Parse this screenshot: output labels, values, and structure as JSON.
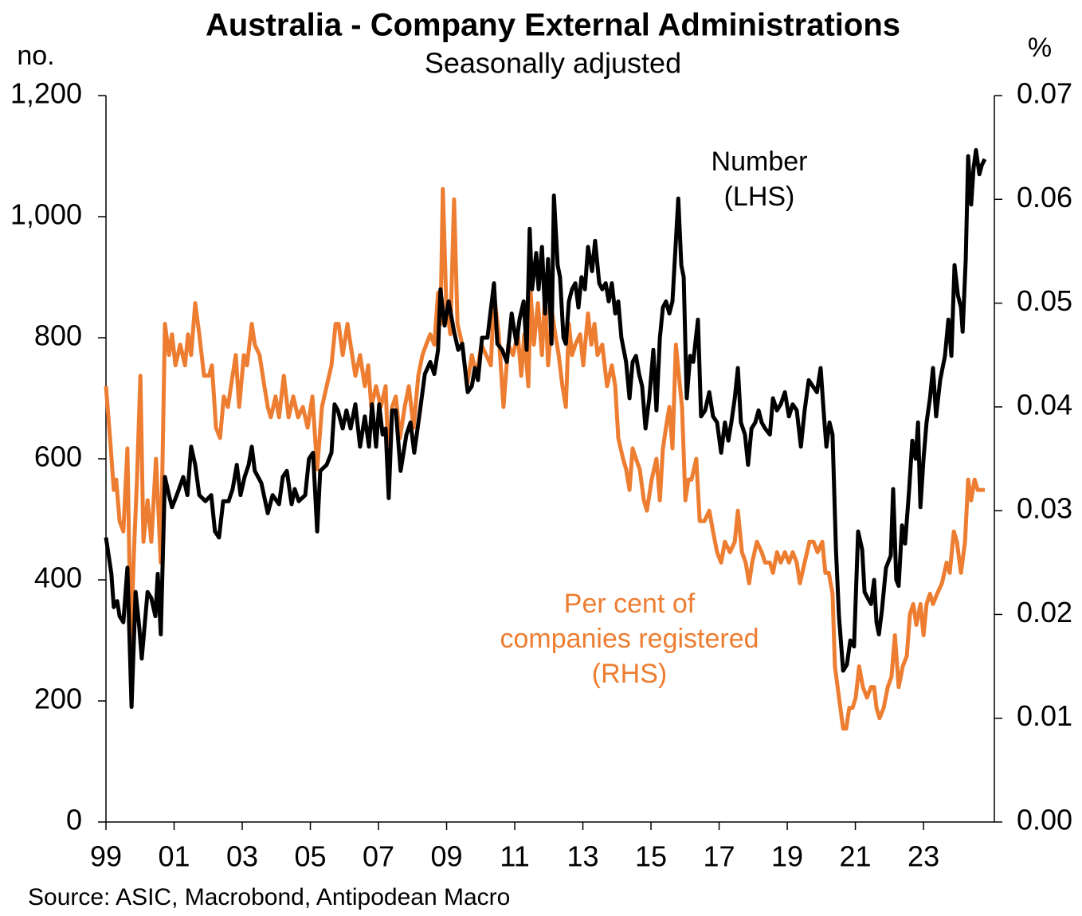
{
  "chart_data": {
    "type": "line",
    "title": "Australia - Company External Administrations",
    "subtitle": "Seasonally adjusted",
    "y_label": "no.",
    "y2_label": "%",
    "source": "Source: ASIC, Macrobond, Antipodean Macro",
    "annotations": [
      {
        "lines": [
          "Number",
          "(LHS)"
        ],
        "color": "#000000"
      },
      {
        "lines": [
          "Per cent of",
          "companies registered",
          "(RHS)"
        ],
        "color": "#ed7d31"
      }
    ],
    "xlim": [
      1999,
      2025.08
    ],
    "xticks": [
      {
        "value": 1999,
        "label": "99"
      },
      {
        "value": 2001,
        "label": "01"
      },
      {
        "value": 2003,
        "label": "03"
      },
      {
        "value": 2005,
        "label": "05"
      },
      {
        "value": 2007,
        "label": "07"
      },
      {
        "value": 2009,
        "label": "09"
      },
      {
        "value": 2011,
        "label": "11"
      },
      {
        "value": 2013,
        "label": "13"
      },
      {
        "value": 2015,
        "label": "15"
      },
      {
        "value": 2017,
        "label": "17"
      },
      {
        "value": 2019,
        "label": "19"
      },
      {
        "value": 2021,
        "label": "21"
      },
      {
        "value": 2023,
        "label": "23"
      }
    ],
    "ylim": [
      0,
      1200
    ],
    "yticks": [
      0,
      200,
      400,
      600,
      800,
      {
        "value": 1000,
        "label": "1,000"
      },
      {
        "value": 1200,
        "label": "1,200"
      }
    ],
    "y2lim": [
      0,
      0.07
    ],
    "y2ticks": [
      {
        "value": 0,
        "label": "0.00"
      },
      0.01,
      0.02,
      0.03,
      0.04,
      0.05,
      0.06,
      0.07
    ],
    "series": [
      {
        "name": "Number (LHS)",
        "color": "#000000",
        "x": [
          1999.0,
          1999.16,
          1999.23,
          1999.33,
          1999.4,
          1999.51,
          1999.63,
          1999.75,
          1999.87,
          1999.98,
          2000.05,
          2000.22,
          2000.33,
          2000.45,
          2000.52,
          2000.61,
          2000.73,
          2000.85,
          2000.94,
          2001.08,
          2001.27,
          2001.39,
          2001.5,
          2001.62,
          2001.74,
          2001.92,
          2002.09,
          2002.2,
          2002.32,
          2002.44,
          2002.6,
          2002.72,
          2002.84,
          2002.95,
          2003.07,
          2003.19,
          2003.28,
          2003.37,
          2003.56,
          2003.75,
          2003.89,
          2004.08,
          2004.19,
          2004.31,
          2004.45,
          2004.54,
          2004.66,
          2004.85,
          2004.96,
          2005.08,
          2005.2,
          2005.29,
          2005.48,
          2005.62,
          2005.71,
          2005.81,
          2005.95,
          2006.06,
          2006.18,
          2006.32,
          2006.46,
          2006.6,
          2006.72,
          2006.81,
          2006.93,
          2007.02,
          2007.12,
          2007.21,
          2007.3,
          2007.4,
          2007.51,
          2007.65,
          2007.82,
          2007.94,
          2008.05,
          2008.22,
          2008.36,
          2008.52,
          2008.64,
          2008.75,
          2008.82,
          2008.94,
          2009.06,
          2009.22,
          2009.34,
          2009.46,
          2009.62,
          2009.74,
          2009.83,
          2009.92,
          2010.04,
          2010.2,
          2010.39,
          2010.49,
          2010.63,
          2010.77,
          2010.91,
          2011.05,
          2011.14,
          2011.26,
          2011.35,
          2011.44,
          2011.51,
          2011.63,
          2011.7,
          2011.8,
          2011.89,
          2011.98,
          2012.08,
          2012.15,
          2012.26,
          2012.33,
          2012.43,
          2012.5,
          2012.59,
          2012.68,
          2012.78,
          2012.87,
          2012.96,
          2013.06,
          2013.15,
          2013.27,
          2013.36,
          2013.48,
          2013.57,
          2013.67,
          2013.76,
          2013.85,
          2013.95,
          2014.04,
          2014.13,
          2014.27,
          2014.37,
          2014.46,
          2014.56,
          2014.65,
          2014.74,
          2014.84,
          2014.95,
          2015.07,
          2015.16,
          2015.26,
          2015.35,
          2015.44,
          2015.54,
          2015.63,
          2015.73,
          2015.8,
          2015.89,
          2015.96,
          2016.05,
          2016.15,
          2016.24,
          2016.38,
          2016.47,
          2016.59,
          2016.71,
          2016.82,
          2016.94,
          2017.06,
          2017.17,
          2017.27,
          2017.36,
          2017.46,
          2017.55,
          2017.64,
          2017.76,
          2017.85,
          2017.95,
          2018.06,
          2018.16,
          2018.25,
          2018.35,
          2018.49,
          2018.58,
          2018.7,
          2018.81,
          2018.93,
          2019.05,
          2019.16,
          2019.28,
          2019.4,
          2019.51,
          2019.63,
          2019.75,
          2019.87,
          2019.98,
          2020.08,
          2020.15,
          2020.24,
          2020.33,
          2020.43,
          2020.52,
          2020.64,
          2020.75,
          2020.85,
          2020.96,
          2021.08,
          2021.2,
          2021.27,
          2021.36,
          2021.46,
          2021.55,
          2021.62,
          2021.69,
          2021.78,
          2021.9,
          2022.04,
          2022.11,
          2022.2,
          2022.27,
          2022.37,
          2022.46,
          2022.58,
          2022.67,
          2022.77,
          2022.84,
          2022.91,
          2023.0,
          2023.09,
          2023.19,
          2023.28,
          2023.37,
          2023.49,
          2023.63,
          2023.73,
          2023.82,
          2023.91,
          2024.01,
          2024.1,
          2024.15,
          2024.24,
          2024.31,
          2024.4,
          2024.47,
          2024.54,
          2024.64,
          2024.71,
          2024.8
        ],
        "values": [
          470,
          410,
          355,
          365,
          340,
          330,
          420,
          190,
          380,
          320,
          270,
          380,
          370,
          340,
          410,
          310,
          570,
          540,
          520,
          540,
          570,
          540,
          620,
          590,
          540,
          530,
          540,
          480,
          470,
          530,
          530,
          550,
          590,
          540,
          570,
          590,
          620,
          580,
          560,
          510,
          540,
          525,
          570,
          580,
          525,
          550,
          530,
          540,
          600,
          610,
          480,
          580,
          590,
          610,
          690,
          680,
          650,
          680,
          650,
          690,
          620,
          670,
          620,
          690,
          620,
          690,
          640,
          650,
          535,
          680,
          680,
          580,
          640,
          660,
          610,
          680,
          740,
          760,
          740,
          780,
          880,
          820,
          860,
          810,
          780,
          790,
          710,
          720,
          750,
          730,
          800,
          800,
          890,
          790,
          780,
          760,
          840,
          790,
          830,
          860,
          780,
          980,
          880,
          940,
          880,
          950,
          840,
          930,
          790,
          1035,
          920,
          900,
          800,
          790,
          860,
          880,
          890,
          850,
          900,
          880,
          950,
          910,
          960,
          890,
          880,
          890,
          860,
          890,
          840,
          860,
          800,
          760,
          700,
          760,
          770,
          740,
          720,
          650,
          700,
          780,
          680,
          800,
          850,
          860,
          840,
          860,
          960,
          1030,
          920,
          900,
          700,
          770,
          760,
          830,
          670,
          680,
          710,
          670,
          660,
          610,
          660,
          630,
          660,
          700,
          750,
          660,
          640,
          590,
          650,
          660,
          680,
          660,
          650,
          640,
          700,
          680,
          690,
          710,
          670,
          690,
          680,
          620,
          680,
          730,
          720,
          710,
          750,
          670,
          620,
          660,
          640,
          450,
          340,
          250,
          260,
          300,
          290,
          480,
          450,
          380,
          370,
          360,
          400,
          330,
          310,
          350,
          420,
          440,
          550,
          400,
          390,
          490,
          460,
          550,
          630,
          600,
          660,
          520,
          600,
          660,
          700,
          750,
          670,
          730,
          770,
          830,
          770,
          920,
          870,
          850,
          810,
          930,
          1100,
          1020,
          1080,
          1110,
          1070,
          1085,
          1095
        ]
      },
      {
        "name": "Per cent of companies registered (RHS)",
        "color": "#ed7d31",
        "axis": "y2",
        "x": [
          1999.0,
          1999.12,
          1999.23,
          1999.3,
          1999.4,
          1999.51,
          1999.63,
          1999.73,
          1999.82,
          1999.91,
          2000.01,
          2000.1,
          2000.22,
          2000.33,
          2000.47,
          2000.61,
          2000.73,
          2000.85,
          2000.94,
          2001.04,
          2001.18,
          2001.32,
          2001.41,
          2001.5,
          2001.62,
          2001.74,
          2001.88,
          2002.02,
          2002.11,
          2002.23,
          2002.35,
          2002.46,
          2002.58,
          2002.67,
          2002.81,
          2002.91,
          2003.05,
          2003.14,
          2003.28,
          2003.37,
          2003.51,
          2003.65,
          2003.75,
          2003.84,
          2003.98,
          2004.08,
          2004.22,
          2004.36,
          2004.5,
          2004.64,
          2004.78,
          2004.92,
          2005.06,
          2005.2,
          2005.34,
          2005.48,
          2005.62,
          2005.74,
          2005.83,
          2005.95,
          2006.09,
          2006.18,
          2006.32,
          2006.46,
          2006.6,
          2006.7,
          2006.79,
          2006.93,
          2007.07,
          2007.21,
          2007.3,
          2007.4,
          2007.51,
          2007.63,
          2007.77,
          2007.89,
          2008.03,
          2008.17,
          2008.29,
          2008.4,
          2008.52,
          2008.64,
          2008.75,
          2008.82,
          2008.89,
          2008.99,
          2009.11,
          2009.22,
          2009.32,
          2009.46,
          2009.6,
          2009.74,
          2009.88,
          2010.02,
          2010.16,
          2010.3,
          2010.39,
          2010.53,
          2010.67,
          2010.81,
          2010.95,
          2011.09,
          2011.19,
          2011.28,
          2011.4,
          2011.47,
          2011.56,
          2011.68,
          2011.8,
          2011.89,
          2011.98,
          2012.1,
          2012.19,
          2012.29,
          2012.4,
          2012.5,
          2012.59,
          2012.68,
          2012.78,
          2012.92,
          2013.01,
          2013.15,
          2013.25,
          2013.34,
          2013.43,
          2013.57,
          2013.71,
          2013.85,
          2013.95,
          2014.04,
          2014.18,
          2014.27,
          2014.37,
          2014.46,
          2014.56,
          2014.67,
          2014.79,
          2014.88,
          2015.02,
          2015.16,
          2015.26,
          2015.35,
          2015.44,
          2015.54,
          2015.63,
          2015.73,
          2015.82,
          2015.91,
          2016.01,
          2016.1,
          2016.19,
          2016.33,
          2016.43,
          2016.57,
          2016.71,
          2016.82,
          2016.94,
          2017.06,
          2017.17,
          2017.32,
          2017.46,
          2017.55,
          2017.67,
          2017.78,
          2017.88,
          2017.97,
          2018.11,
          2018.25,
          2018.35,
          2018.49,
          2018.58,
          2018.7,
          2018.81,
          2018.93,
          2019.05,
          2019.16,
          2019.28,
          2019.37,
          2019.51,
          2019.65,
          2019.77,
          2019.89,
          2020.03,
          2020.12,
          2020.22,
          2020.33,
          2020.4,
          2020.52,
          2020.64,
          2020.73,
          2020.82,
          2020.92,
          2021.01,
          2021.11,
          2021.22,
          2021.34,
          2021.46,
          2021.55,
          2021.62,
          2021.71,
          2021.83,
          2021.95,
          2022.06,
          2022.16,
          2022.27,
          2022.39,
          2022.51,
          2022.6,
          2022.7,
          2022.79,
          2022.91,
          2023.0,
          2023.09,
          2023.19,
          2023.28,
          2023.4,
          2023.54,
          2023.68,
          2023.77,
          2023.89,
          2023.98,
          2024.1,
          2024.22,
          2024.31,
          2024.4,
          2024.5,
          2024.59,
          2024.71,
          2024.8
        ],
        "values": [
          0.042,
          0.037,
          0.032,
          0.033,
          0.029,
          0.028,
          0.036,
          0.017,
          0.026,
          0.033,
          0.043,
          0.027,
          0.031,
          0.027,
          0.035,
          0.025,
          0.048,
          0.045,
          0.047,
          0.044,
          0.046,
          0.044,
          0.047,
          0.045,
          0.05,
          0.047,
          0.043,
          0.043,
          0.044,
          0.038,
          0.037,
          0.041,
          0.04,
          0.042,
          0.045,
          0.04,
          0.045,
          0.044,
          0.048,
          0.046,
          0.045,
          0.042,
          0.04,
          0.039,
          0.041,
          0.039,
          0.043,
          0.039,
          0.041,
          0.039,
          0.04,
          0.038,
          0.041,
          0.034,
          0.04,
          0.042,
          0.044,
          0.048,
          0.048,
          0.045,
          0.048,
          0.046,
          0.043,
          0.045,
          0.042,
          0.044,
          0.04,
          0.042,
          0.04,
          0.042,
          0.034,
          0.04,
          0.041,
          0.037,
          0.04,
          0.042,
          0.038,
          0.043,
          0.045,
          0.046,
          0.047,
          0.046,
          0.051,
          0.048,
          0.061,
          0.05,
          0.047,
          0.06,
          0.048,
          0.046,
          0.042,
          0.045,
          0.043,
          0.046,
          0.045,
          0.044,
          0.051,
          0.047,
          0.04,
          0.046,
          0.045,
          0.047,
          0.043,
          0.047,
          0.042,
          0.051,
          0.046,
          0.05,
          0.045,
          0.051,
          0.044,
          0.049,
          0.047,
          0.045,
          0.042,
          0.04,
          0.048,
          0.045,
          0.046,
          0.047,
          0.044,
          0.049,
          0.046,
          0.048,
          0.045,
          0.046,
          0.042,
          0.044,
          0.042,
          0.037,
          0.035,
          0.034,
          0.032,
          0.036,
          0.035,
          0.034,
          0.031,
          0.03,
          0.033,
          0.035,
          0.031,
          0.036,
          0.038,
          0.04,
          0.036,
          0.046,
          0.043,
          0.04,
          0.031,
          0.033,
          0.033,
          0.035,
          0.029,
          0.029,
          0.03,
          0.028,
          0.026,
          0.025,
          0.027,
          0.026,
          0.027,
          0.03,
          0.026,
          0.025,
          0.023,
          0.025,
          0.027,
          0.026,
          0.025,
          0.025,
          0.024,
          0.026,
          0.025,
          0.026,
          0.025,
          0.026,
          0.025,
          0.023,
          0.025,
          0.027,
          0.027,
          0.026,
          0.027,
          0.024,
          0.024,
          0.022,
          0.015,
          0.012,
          0.009,
          0.009,
          0.011,
          0.011,
          0.012,
          0.015,
          0.013,
          0.012,
          0.013,
          0.013,
          0.011,
          0.01,
          0.011,
          0.013,
          0.014,
          0.018,
          0.013,
          0.015,
          0.016,
          0.02,
          0.021,
          0.019,
          0.021,
          0.018,
          0.021,
          0.022,
          0.021,
          0.022,
          0.023,
          0.025,
          0.024,
          0.028,
          0.027,
          0.024,
          0.027,
          0.033,
          0.031,
          0.033,
          0.032,
          0.032,
          0.032
        ]
      }
    ]
  }
}
